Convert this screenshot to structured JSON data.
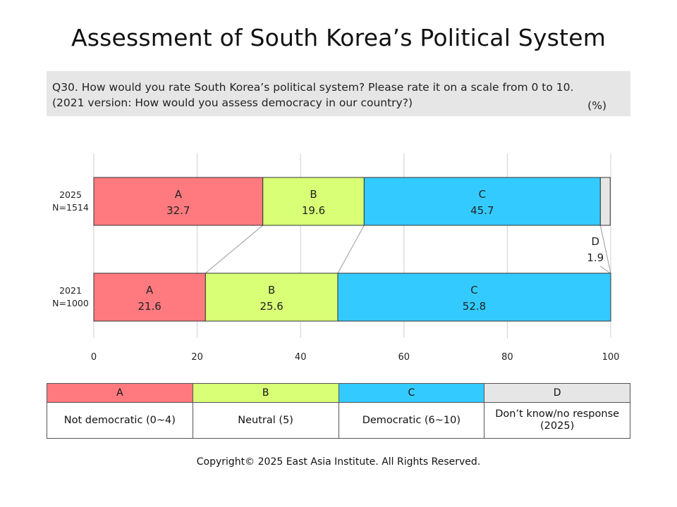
{
  "title": "Assessment of South Korea’s Political System",
  "question": {
    "line1": "Q30. How would you rate South Korea’s political system? Please rate it on a scale from 0 to 10.",
    "line2": "(2021 version: How would you assess democracy in our country?)",
    "unit": "(%)"
  },
  "colors": {
    "A": "#ff7a7f",
    "B": "#d8ff75",
    "C": "#33cbff",
    "D": "#e6e6e6"
  },
  "chart_data": {
    "type": "bar",
    "orientation": "horizontal-stacked",
    "categories": [
      {
        "year": "2025",
        "n": "N=1514"
      },
      {
        "year": "2021",
        "n": "N=1000"
      }
    ],
    "series": [
      {
        "name": "A",
        "values": [
          32.7,
          21.6
        ]
      },
      {
        "name": "B",
        "values": [
          19.6,
          25.6
        ]
      },
      {
        "name": "C",
        "values": [
          45.7,
          52.8
        ]
      },
      {
        "name": "D",
        "values": [
          1.9,
          0
        ]
      }
    ],
    "xlim": [
      0,
      100
    ],
    "xticks": [
      "0",
      "20",
      "40",
      "60",
      "80",
      "100"
    ],
    "grid": true,
    "connector_lines": true
  },
  "legend": {
    "headers": [
      "A",
      "B",
      "C",
      "D"
    ],
    "descriptions": [
      "Not democratic (0~4)",
      "Neutral (5)",
      "Democratic (6~10)",
      "Don’t know/no response (2025)"
    ]
  },
  "copyright": "Copyright© 2025 East Asia Institute. All Rights Reserved."
}
